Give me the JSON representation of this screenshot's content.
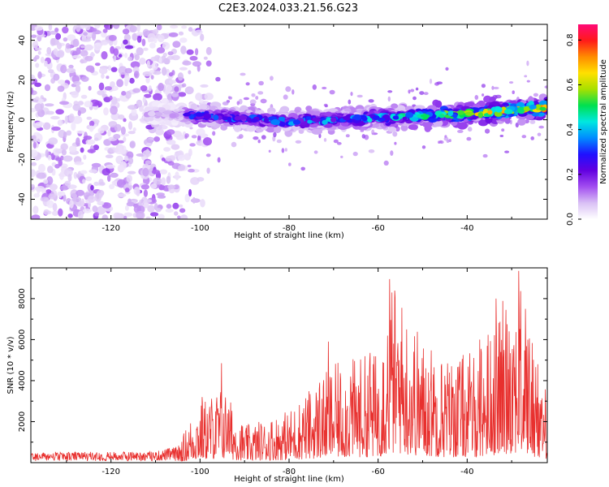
{
  "title": "C2E3.2024.033.21.56.G23",
  "chart_data": [
    {
      "type": "heatmap",
      "xlabel": "Height of straight line (km)",
      "ylabel": "Frequency (Hz)",
      "xlim": [
        -138,
        -22
      ],
      "ylim": [
        -50,
        48
      ],
      "xticks": [
        -120,
        -100,
        -80,
        -60,
        -40
      ],
      "yticks": [
        -40,
        -20,
        0,
        20,
        40
      ],
      "colorbar": {
        "label": "Normalized spectral amplitude",
        "range": [
          0,
          0.87
        ],
        "ticks": [
          0.0,
          0.2,
          0.4,
          0.6,
          0.8
        ],
        "colormap": [
          "#ffffff",
          "#d9c0f5",
          "#a24df0",
          "#6200e0",
          "#1f10ff",
          "#008cff",
          "#00e8e0",
          "#00e050",
          "#a8e000",
          "#ffe000",
          "#ff8c00",
          "#ff1a1a",
          "#ff0a78"
        ]
      },
      "band": {
        "center_frequency": [
          {
            "x": -110,
            "y": 3
          },
          {
            "x": -100,
            "y": 2
          },
          {
            "x": -80,
            "y": -1
          },
          {
            "x": -60,
            "y": 1
          },
          {
            "x": -50,
            "y": 2
          },
          {
            "x": -40,
            "y": 3
          },
          {
            "x": -22,
            "y": 6
          }
        ],
        "amplitude_max": [
          {
            "x": -110,
            "y": 0.2
          },
          {
            "x": -100,
            "y": 0.35
          },
          {
            "x": -80,
            "y": 0.4
          },
          {
            "x": -60,
            "y": 0.45
          },
          {
            "x": -40,
            "y": 0.65
          },
          {
            "x": -24,
            "y": 0.8
          }
        ]
      },
      "noise_region": {
        "x_from": -138,
        "x_to": -104,
        "amplitude": 0.2
      }
    },
    {
      "type": "line",
      "color": "#e8302e",
      "xlabel": "Height of straight line (km)",
      "ylabel": "SNR (10 * v/v)",
      "xlim": [
        -138,
        -22
      ],
      "ylim": [
        0,
        9500
      ],
      "xticks": [
        -120,
        -100,
        -80,
        -60,
        -40
      ],
      "yticks": [
        2000,
        4000,
        6000,
        8000
      ],
      "envelope": [
        {
          "x": -138,
          "y": 500
        },
        {
          "x": -110,
          "y": 550
        },
        {
          "x": -105,
          "y": 800
        },
        {
          "x": -101,
          "y": 2800
        },
        {
          "x": -95,
          "y": 3800
        },
        {
          "x": -90,
          "y": 1800
        },
        {
          "x": -80,
          "y": 2600
        },
        {
          "x": -70,
          "y": 4800
        },
        {
          "x": -60,
          "y": 5500
        },
        {
          "x": -57,
          "y": 9000
        },
        {
          "x": -50,
          "y": 6200
        },
        {
          "x": -45,
          "y": 5200
        },
        {
          "x": -38,
          "y": 5500
        },
        {
          "x": -32,
          "y": 8000
        },
        {
          "x": -29,
          "y": 9400
        },
        {
          "x": -24,
          "y": 5000
        },
        {
          "x": -22,
          "y": 3500
        }
      ],
      "peaks": [
        {
          "x": -108.5,
          "y": 350
        },
        {
          "x": -99.5,
          "y": 3200
        },
        {
          "x": -96.5,
          "y": 2500
        },
        {
          "x": -95.2,
          "y": 4850
        },
        {
          "x": -93.8,
          "y": 2400
        },
        {
          "x": -85.5,
          "y": 1750
        },
        {
          "x": -76.8,
          "y": 2150
        },
        {
          "x": -73.1,
          "y": 3900
        },
        {
          "x": -71.2,
          "y": 5900
        },
        {
          "x": -66.2,
          "y": 4200
        },
        {
          "x": -64.5,
          "y": 3200
        },
        {
          "x": -61.8,
          "y": 5350
        },
        {
          "x": -58.9,
          "y": 4900
        },
        {
          "x": -57.4,
          "y": 8950
        },
        {
          "x": -54.8,
          "y": 5900
        },
        {
          "x": -50.1,
          "y": 5100
        },
        {
          "x": -47.6,
          "y": 4300
        },
        {
          "x": -45.8,
          "y": 4700
        },
        {
          "x": -41.5,
          "y": 3600
        },
        {
          "x": -37.2,
          "y": 6000
        },
        {
          "x": -33.5,
          "y": 8000
        },
        {
          "x": -30.6,
          "y": 6400
        },
        {
          "x": -28.4,
          "y": 9350
        },
        {
          "x": -26.9,
          "y": 7500
        },
        {
          "x": -24.1,
          "y": 4800
        }
      ]
    }
  ]
}
